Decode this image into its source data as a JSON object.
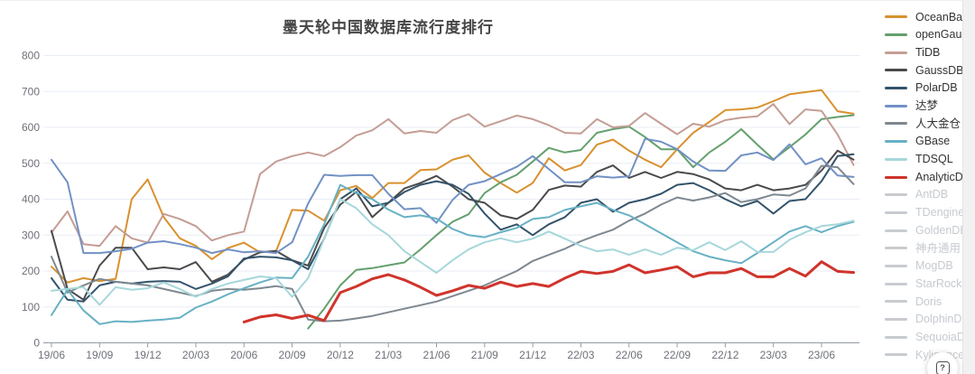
{
  "title": "墨天轮中国数据库流行度排行",
  "help_button": {
    "icon": "?"
  },
  "legend": {
    "disabled_color": "#c8ccd0",
    "items": [
      {
        "label": "OceanBase",
        "color": "#d9912e",
        "enabled": true
      },
      {
        "label": "openGauss",
        "color": "#64a06d",
        "enabled": true
      },
      {
        "label": "TiDB",
        "color": "#c49d94",
        "enabled": true
      },
      {
        "label": "GaussDB",
        "color": "#4a4a4a",
        "enabled": true
      },
      {
        "label": "PolarDB",
        "color": "#33536b",
        "enabled": true
      },
      {
        "label": "达梦",
        "color": "#7291c4",
        "enabled": true
      },
      {
        "label": "人大金仓",
        "color": "#7e8890",
        "enabled": true
      },
      {
        "label": "GBase",
        "color": "#67b1c4",
        "enabled": true
      },
      {
        "label": "TDSQL",
        "color": "#a6d7db",
        "enabled": true
      },
      {
        "label": "AnalyticDB",
        "color": "#d0342c",
        "enabled": true
      },
      {
        "label": "AntDB",
        "color": "#c8ccd0",
        "enabled": false
      },
      {
        "label": "TDengine",
        "color": "#c8ccd0",
        "enabled": false
      },
      {
        "label": "GoldenDB",
        "color": "#c8ccd0",
        "enabled": false
      },
      {
        "label": "神舟通用",
        "color": "#c8ccd0",
        "enabled": false
      },
      {
        "label": "MogDB",
        "color": "#c8ccd0",
        "enabled": false
      },
      {
        "label": "StarRocks",
        "color": "#c8ccd0",
        "enabled": false
      },
      {
        "label": "Doris",
        "color": "#c8ccd0",
        "enabled": false
      },
      {
        "label": "DolphinDB",
        "color": "#c8ccd0",
        "enabled": false
      },
      {
        "label": "SequoiaDB",
        "color": "#c8ccd0",
        "enabled": false
      },
      {
        "label": "Kyligence",
        "color": "#c8ccd0",
        "enabled": false
      }
    ]
  },
  "chart_data": {
    "type": "line",
    "title": "墨天轮中国数据库流行度排行",
    "xlabel": "",
    "ylabel": "",
    "ylim": [
      0,
      800
    ],
    "y_tick_labels": [
      "800",
      "700",
      "600",
      "500",
      "400",
      "300",
      "200",
      "100",
      "0"
    ],
    "x_tick_labels": [
      "19/06",
      "19/09",
      "19/12",
      "20/03",
      "20/06",
      "20/09",
      "20/12",
      "21/03",
      "21/06",
      "21/09",
      "21/12",
      "22/03",
      "22/06",
      "22/09",
      "22/12",
      "23/03",
      "23/06"
    ],
    "grid": true,
    "legend_position": "right",
    "x_months": [
      "2019/06",
      "2019/07",
      "2019/08",
      "2019/09",
      "2019/10",
      "2019/11",
      "2019/12",
      "2020/01",
      "2020/02",
      "2020/03",
      "2020/04",
      "2020/05",
      "2020/06",
      "2020/07",
      "2020/08",
      "2020/09",
      "2020/10",
      "2020/11",
      "2020/12",
      "2021/01",
      "2021/02",
      "2021/03",
      "2021/04",
      "2021/05",
      "2021/06",
      "2021/07",
      "2021/08",
      "2021/09",
      "2021/10",
      "2021/11",
      "2021/12",
      "2022/01",
      "2022/02",
      "2022/03",
      "2022/04",
      "2022/05",
      "2022/06",
      "2022/07",
      "2022/08",
      "2022/09",
      "2022/10",
      "2022/11",
      "2022/12",
      "2023/01",
      "2023/02",
      "2023/03",
      "2023/04",
      "2023/05",
      "2023/06",
      "2023/07",
      "2023/08"
    ],
    "series": [
      {
        "name": "OceanBase",
        "color": "#d9912e",
        "width": 2,
        "values": [
          212,
          168,
          180,
          172,
          178,
          400,
          455,
          350,
          291,
          270,
          233,
          264,
          279,
          252,
          255,
          370,
          368,
          340,
          425,
          437,
          403,
          445,
          445,
          481,
          483,
          510,
          522,
          474,
          445,
          418,
          445,
          514,
          480,
          495,
          552,
          566,
          535,
          510,
          489,
          539,
          585,
          615,
          648,
          650,
          655,
          673,
          692,
          698,
          704,
          645,
          638
        ]
      },
      {
        "name": "openGauss",
        "color": "#64a06d",
        "width": 2,
        "values": [
          null,
          null,
          null,
          null,
          null,
          null,
          null,
          null,
          null,
          null,
          null,
          null,
          null,
          null,
          null,
          null,
          40,
          95,
          160,
          203,
          208,
          216,
          224,
          260,
          300,
          337,
          358,
          417,
          447,
          468,
          505,
          543,
          530,
          537,
          585,
          595,
          602,
          573,
          539,
          539,
          489,
          530,
          560,
          595,
          552,
          511,
          545,
          580,
          623,
          629,
          634
        ]
      },
      {
        "name": "TiDB",
        "color": "#c49d94",
        "width": 2,
        "values": [
          307,
          366,
          275,
          270,
          325,
          291,
          279,
          359,
          345,
          325,
          285,
          300,
          310,
          470,
          505,
          520,
          530,
          520,
          545,
          577,
          592,
          623,
          583,
          590,
          585,
          620,
          637,
          602,
          617,
          633,
          623,
          606,
          585,
          583,
          623,
          600,
          604,
          640,
          610,
          581,
          610,
          602,
          620,
          627,
          631,
          665,
          609,
          650,
          646,
          580,
          495
        ]
      },
      {
        "name": "GaussDB",
        "color": "#4a4a4a",
        "width": 2,
        "values": [
          312,
          150,
          120,
          215,
          265,
          265,
          205,
          210,
          205,
          225,
          170,
          190,
          232,
          252,
          256,
          230,
          215,
          320,
          385,
          420,
          350,
          390,
          430,
          445,
          465,
          435,
          400,
          390,
          355,
          345,
          370,
          426,
          438,
          435,
          476,
          494,
          459,
          476,
          459,
          476,
          470,
          455,
          430,
          425,
          440,
          425,
          430,
          440,
          480,
          535,
          510
        ]
      },
      {
        "name": "PolarDB",
        "color": "#33536b",
        "width": 2,
        "values": [
          180,
          120,
          115,
          160,
          170,
          165,
          170,
          172,
          170,
          150,
          165,
          185,
          235,
          240,
          238,
          230,
          205,
          290,
          400,
          430,
          380,
          390,
          420,
          440,
          450,
          440,
          415,
          360,
          315,
          330,
          300,
          330,
          350,
          390,
          400,
          365,
          390,
          400,
          415,
          440,
          445,
          425,
          400,
          380,
          395,
          360,
          395,
          400,
          450,
          520,
          525
        ]
      },
      {
        "name": "达梦",
        "color": "#7291c4",
        "width": 2,
        "values": [
          510,
          447,
          250,
          250,
          255,
          262,
          279,
          283,
          275,
          265,
          250,
          260,
          252,
          255,
          250,
          280,
          388,
          468,
          465,
          467,
          467,
          415,
          372,
          375,
          334,
          398,
          440,
          450,
          470,
          490,
          520,
          484,
          447,
          447,
          464,
          460,
          464,
          568,
          560,
          539,
          505,
          480,
          479,
          522,
          530,
          509,
          553,
          497,
          514,
          466,
          462
        ]
      },
      {
        "name": "人大金仓",
        "color": "#7e8890",
        "width": 2,
        "values": [
          240,
          140,
          160,
          178,
          170,
          165,
          160,
          150,
          140,
          130,
          145,
          150,
          148,
          152,
          158,
          150,
          65,
          60,
          62,
          68,
          75,
          85,
          95,
          105,
          115,
          130,
          145,
          160,
          180,
          200,
          228,
          245,
          262,
          283,
          300,
          315,
          340,
          360,
          385,
          405,
          396,
          405,
          417,
          392,
          400,
          413,
          410,
          430,
          493,
          489,
          442
        ]
      },
      {
        "name": "GBase",
        "color": "#67b1c4",
        "width": 2,
        "values": [
          77,
          148,
          90,
          52,
          60,
          58,
          62,
          65,
          70,
          98,
          115,
          135,
          152,
          168,
          182,
          180,
          240,
          330,
          440,
          417,
          400,
          371,
          350,
          355,
          346,
          317,
          300,
          294,
          308,
          320,
          345,
          350,
          370,
          380,
          390,
          370,
          355,
          330,
          305,
          280,
          255,
          240,
          230,
          222,
          250,
          280,
          310,
          325,
          308,
          325,
          337
        ]
      },
      {
        "name": "TDSQL",
        "color": "#a6d7db",
        "width": 2,
        "values": [
          145,
          150,
          155,
          106,
          155,
          148,
          152,
          168,
          150,
          128,
          150,
          165,
          175,
          185,
          180,
          128,
          180,
          290,
          400,
          375,
          330,
          300,
          255,
          225,
          195,
          230,
          260,
          280,
          291,
          280,
          290,
          310,
          290,
          270,
          255,
          260,
          245,
          260,
          245,
          265,
          258,
          280,
          258,
          283,
          253,
          253,
          287,
          308,
          325,
          330,
          340
        ]
      },
      {
        "name": "AnalyticDB",
        "color": "#d0342c",
        "width": 3,
        "values": [
          null,
          null,
          null,
          null,
          null,
          null,
          null,
          null,
          null,
          null,
          null,
          null,
          58,
          72,
          78,
          68,
          77,
          62,
          140,
          157,
          178,
          190,
          175,
          155,
          132,
          145,
          160,
          152,
          169,
          157,
          165,
          157,
          180,
          199,
          193,
          199,
          217,
          195,
          203,
          212,
          184,
          195,
          195,
          207,
          184,
          184,
          207,
          186,
          226,
          199,
          196
        ]
      }
    ]
  }
}
